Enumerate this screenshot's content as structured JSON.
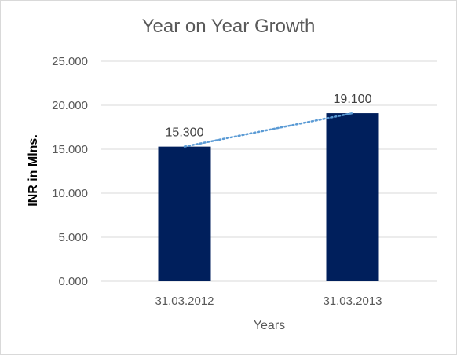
{
  "chart_data": {
    "type": "bar",
    "title": "Year on Year Growth",
    "xlabel": "Years",
    "ylabel": "INR in Mlns.",
    "categories": [
      "31.03.2012",
      "31.03.2013"
    ],
    "values": [
      15.3,
      19.1
    ],
    "data_labels": [
      "15.300",
      "19.100"
    ],
    "y_ticks": [
      "0.000",
      "5.000",
      "10.000",
      "15.000",
      "20.000",
      "25.000"
    ],
    "ylim": [
      0,
      25
    ],
    "grid": true,
    "trendline": {
      "type": "linear",
      "style": "dotted",
      "color": "#5b9bd5"
    },
    "colors": {
      "bar": "#001f5c",
      "grid": "#d9d9d9"
    }
  }
}
